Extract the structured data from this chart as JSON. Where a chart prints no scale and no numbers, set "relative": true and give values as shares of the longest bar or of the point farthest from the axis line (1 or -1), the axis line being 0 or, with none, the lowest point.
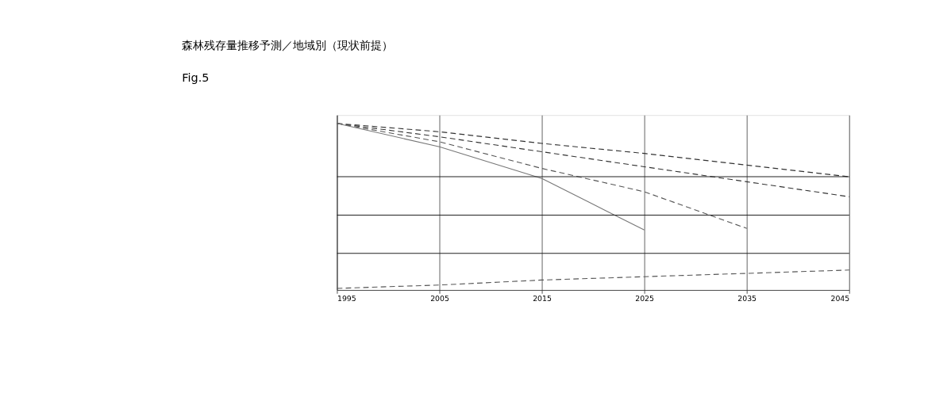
{
  "chart_data": {
    "type": "line",
    "title": "森林残存量推移予測／地域別（現状前提）",
    "annotations": [
      "Fig.5"
    ],
    "relative": true,
    "x": [
      1995,
      2005,
      2015,
      2025,
      2035,
      2045
    ],
    "xlim": [
      1995,
      2045
    ],
    "xticks": [
      1995,
      2005,
      2015,
      2025,
      2035,
      2045
    ],
    "grid": "x",
    "tick_labels": "x",
    "marker": "none",
    "series": [
      {
        "color": "#333333",
        "line_style": "dashed",
        "values": [
          1,
          0.95,
          0.88,
          0.82,
          0.75,
          0.68
        ]
      },
      {
        "color": "#333333",
        "line_style": "dashed",
        "values": [
          1,
          0.92,
          0.83,
          0.74,
          0.65,
          0.56
        ]
      },
      {
        "color": "#555555",
        "line_style": "dashed",
        "values": [
          1,
          0.89,
          0.73,
          0.59,
          0.37,
          null
        ]
      },
      {
        "color": "#777777",
        "line_style": "solid",
        "values": [
          1,
          0.86,
          0.67,
          0.36,
          null,
          null
        ]
      },
      {
        "color": "#555555",
        "line_style": "dashed",
        "values": [
          0.01,
          0.03,
          0.06,
          0.08,
          0.1,
          0.12
        ]
      }
    ],
    "ref_lines": [
      {
        "axis": "y",
        "value": 0.68,
        "color": "#222222",
        "line_style": "solid"
      },
      {
        "axis": "y",
        "value": 0.45,
        "color": "#222222",
        "line_style": "solid"
      },
      {
        "axis": "y",
        "value": 0.22,
        "color": "#222222",
        "line_style": "solid"
      }
    ]
  }
}
